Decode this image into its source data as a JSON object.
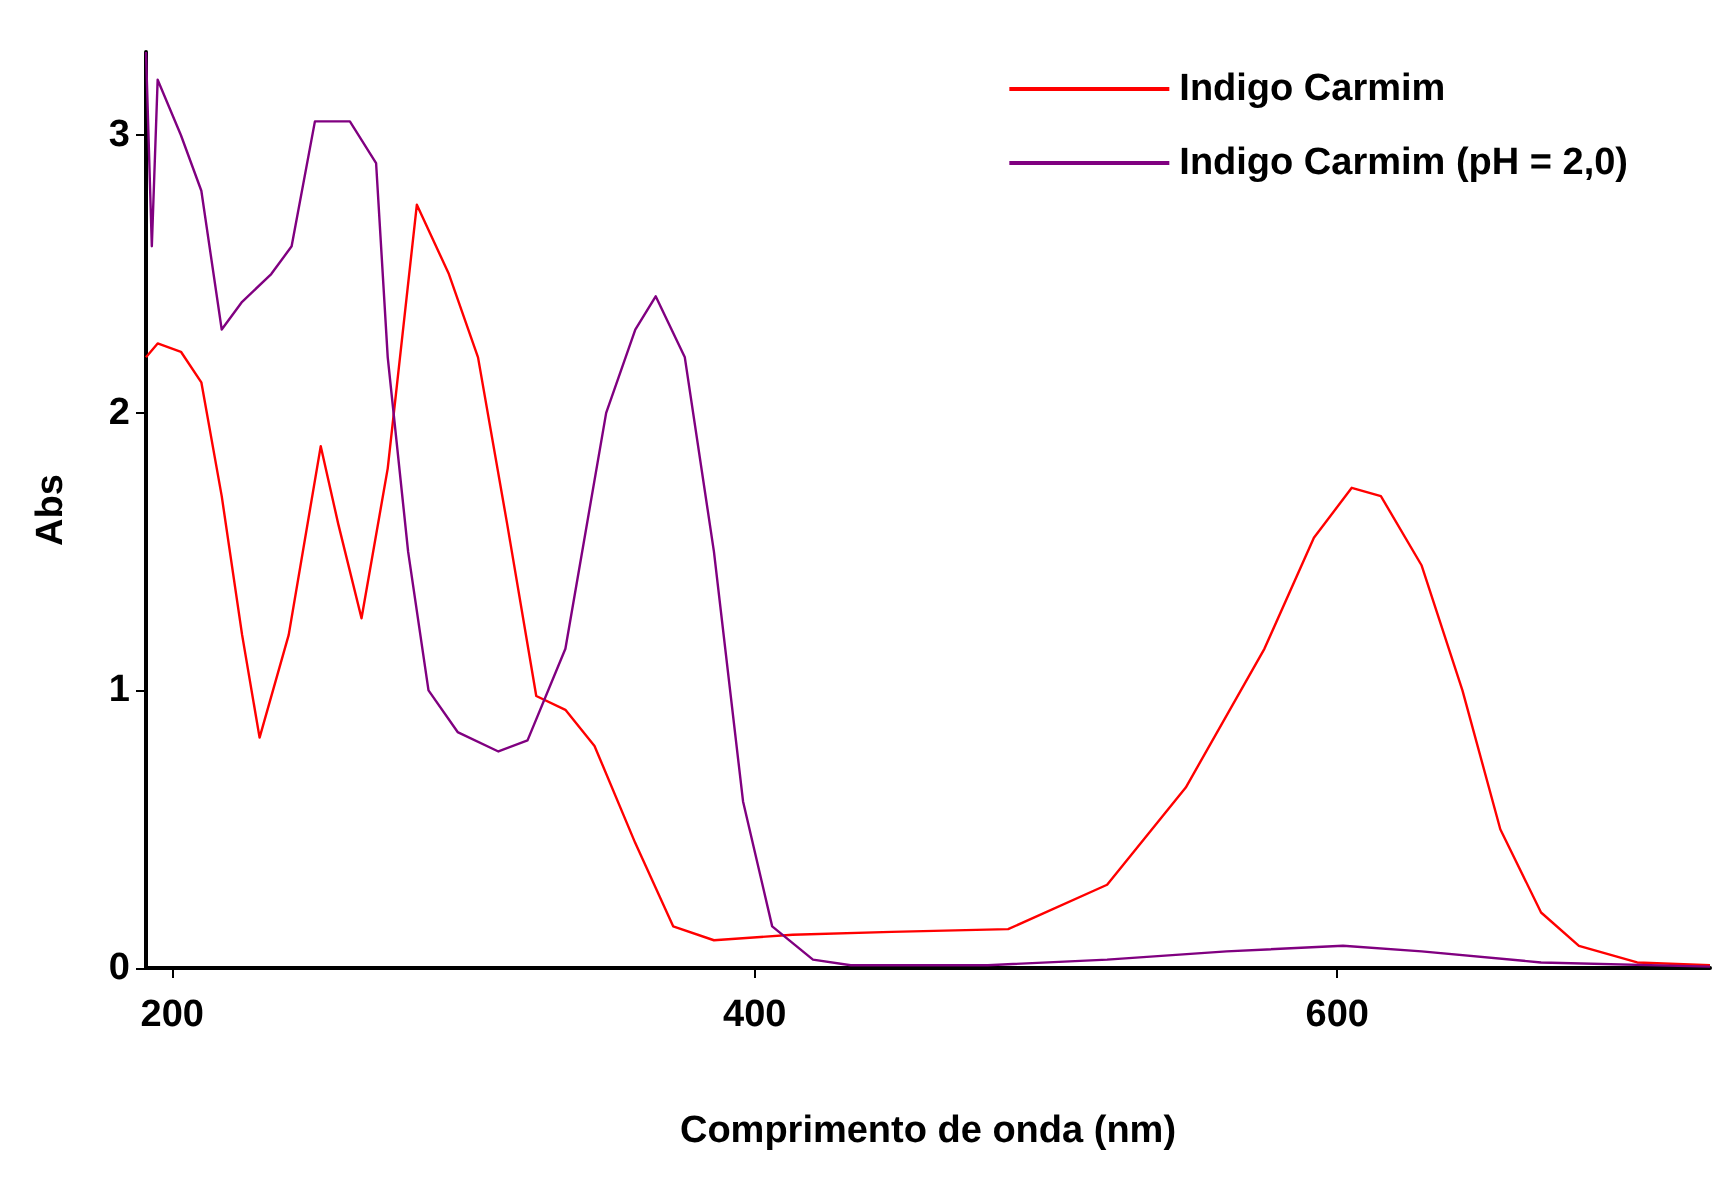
{
  "chart_data": {
    "type": "line",
    "xlabel": "Comprimento de onda (nm)",
    "ylabel": "Abs",
    "xlim": [
      191,
      728
    ],
    "ylim": [
      0,
      3.3
    ],
    "xticks": [
      200,
      400,
      600
    ],
    "yticks": [
      0,
      1,
      2,
      3
    ],
    "grid": false,
    "legend": "top right",
    "marker": "none",
    "line_style": "solid",
    "series": [
      {
        "name": "Indigo Carmim",
        "color": "#ff0000",
        "x": [
          191,
          195,
          203,
          210,
          217,
          224,
          230,
          240,
          251,
          257,
          265,
          274,
          284,
          295,
          305,
          315,
          325,
          335,
          345,
          359,
          372,
          386,
          413,
          447,
          487,
          521,
          548,
          575,
          592,
          605,
          615,
          629,
          643,
          656,
          670,
          683,
          703,
          728
        ],
        "values": [
          2.2,
          2.25,
          2.22,
          2.11,
          1.7,
          1.2,
          0.83,
          1.2,
          1.88,
          1.6,
          1.26,
          1.8,
          2.75,
          2.5,
          2.2,
          1.6,
          0.98,
          0.93,
          0.8,
          0.45,
          0.15,
          0.1,
          0.12,
          0.13,
          0.14,
          0.3,
          0.65,
          1.15,
          1.55,
          1.73,
          1.7,
          1.45,
          1.0,
          0.5,
          0.2,
          0.08,
          0.02,
          0.01
        ]
      },
      {
        "name": "Indigo Carmim (pH = 2,0)",
        "color": "#800080",
        "x": [
          191,
          193,
          195,
          203,
          210,
          217,
          224,
          234,
          241,
          249,
          261,
          270,
          274,
          281,
          288,
          298,
          312,
          322,
          335,
          349,
          359,
          366,
          376,
          386,
          396,
          406,
          420,
          433,
          480,
          521,
          562,
          602,
          629,
          670,
          728
        ],
        "values": [
          3.3,
          2.6,
          3.2,
          3.0,
          2.8,
          2.3,
          2.4,
          2.5,
          2.6,
          3.05,
          3.05,
          2.9,
          2.2,
          1.5,
          1.0,
          0.85,
          0.78,
          0.82,
          1.15,
          2.0,
          2.3,
          2.42,
          2.2,
          1.5,
          0.6,
          0.15,
          0.03,
          0.01,
          0.01,
          0.03,
          0.06,
          0.08,
          0.06,
          0.02,
          0.005
        ]
      }
    ]
  }
}
